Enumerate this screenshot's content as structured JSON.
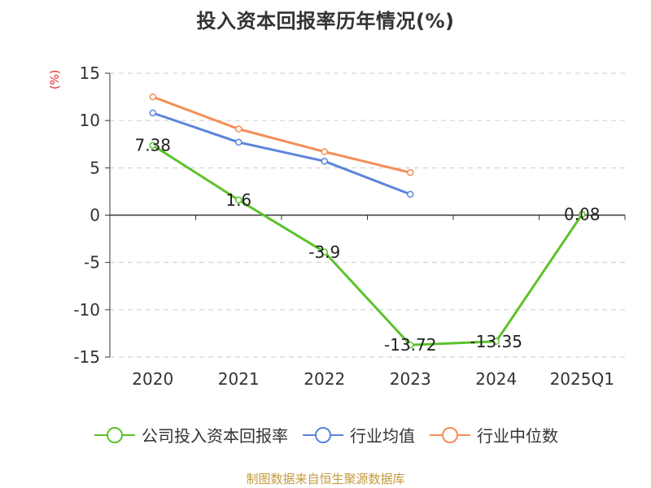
{
  "chart_data": {
    "type": "line",
    "title": "投入资本回报率历年情况(%)",
    "ylabel": "(%)",
    "categories": [
      "2020",
      "2021",
      "2022",
      "2023",
      "2024",
      "2025Q1"
    ],
    "ylim": [
      -15,
      15
    ],
    "yticks": [
      15,
      10,
      5,
      0,
      -5,
      -10,
      -15
    ],
    "grid": true,
    "legend_position": "bottom",
    "series": [
      {
        "name": "公司投入资本回报率",
        "color": "#5cc22c",
        "values": [
          7.38,
          1.6,
          -3.9,
          -13.72,
          -13.35,
          0.08
        ],
        "labels": [
          "7.38",
          "1.6",
          "-3.9",
          "-13.72",
          "-13.35",
          "0.08"
        ]
      },
      {
        "name": "行业均值",
        "color": "#5b85db",
        "values": [
          10.8,
          7.7,
          5.7,
          2.2,
          null,
          null
        ]
      },
      {
        "name": "行业中位数",
        "color": "#f58d55",
        "values": [
          12.5,
          9.1,
          6.7,
          4.5,
          null,
          null
        ]
      }
    ]
  },
  "source": "制图数据来自恒生聚源数据库"
}
